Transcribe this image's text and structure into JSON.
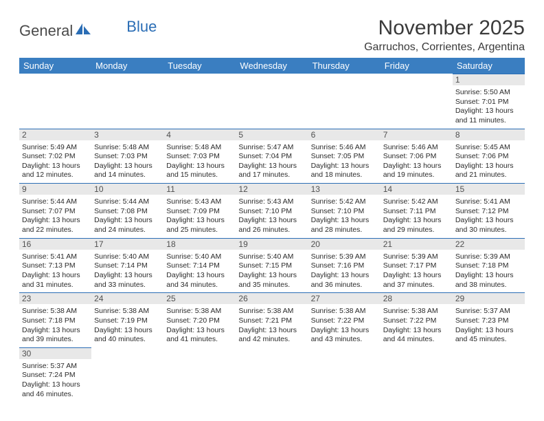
{
  "logo": {
    "text1": "General",
    "text2": "Blue"
  },
  "title": "November 2025",
  "location": "Garruchos, Corrientes, Argentina",
  "weekdays": [
    "Sunday",
    "Monday",
    "Tuesday",
    "Wednesday",
    "Thursday",
    "Friday",
    "Saturday"
  ],
  "colors": {
    "header_bg": "#3a7ec1",
    "header_fg": "#ffffff",
    "daynum_bg": "#e8e8e8",
    "daynum_border": "#2a6db5",
    "text": "#2a2a2a",
    "logo_gray": "#4a4a4a",
    "logo_blue": "#2a6db5"
  },
  "weeks": [
    [
      null,
      null,
      null,
      null,
      null,
      null,
      {
        "n": "1",
        "sr": "Sunrise: 5:50 AM",
        "ss": "Sunset: 7:01 PM",
        "d1": "Daylight: 13 hours",
        "d2": "and 11 minutes."
      }
    ],
    [
      {
        "n": "2",
        "sr": "Sunrise: 5:49 AM",
        "ss": "Sunset: 7:02 PM",
        "d1": "Daylight: 13 hours",
        "d2": "and 12 minutes."
      },
      {
        "n": "3",
        "sr": "Sunrise: 5:48 AM",
        "ss": "Sunset: 7:03 PM",
        "d1": "Daylight: 13 hours",
        "d2": "and 14 minutes."
      },
      {
        "n": "4",
        "sr": "Sunrise: 5:48 AM",
        "ss": "Sunset: 7:03 PM",
        "d1": "Daylight: 13 hours",
        "d2": "and 15 minutes."
      },
      {
        "n": "5",
        "sr": "Sunrise: 5:47 AM",
        "ss": "Sunset: 7:04 PM",
        "d1": "Daylight: 13 hours",
        "d2": "and 17 minutes."
      },
      {
        "n": "6",
        "sr": "Sunrise: 5:46 AM",
        "ss": "Sunset: 7:05 PM",
        "d1": "Daylight: 13 hours",
        "d2": "and 18 minutes."
      },
      {
        "n": "7",
        "sr": "Sunrise: 5:46 AM",
        "ss": "Sunset: 7:06 PM",
        "d1": "Daylight: 13 hours",
        "d2": "and 19 minutes."
      },
      {
        "n": "8",
        "sr": "Sunrise: 5:45 AM",
        "ss": "Sunset: 7:06 PM",
        "d1": "Daylight: 13 hours",
        "d2": "and 21 minutes."
      }
    ],
    [
      {
        "n": "9",
        "sr": "Sunrise: 5:44 AM",
        "ss": "Sunset: 7:07 PM",
        "d1": "Daylight: 13 hours",
        "d2": "and 22 minutes."
      },
      {
        "n": "10",
        "sr": "Sunrise: 5:44 AM",
        "ss": "Sunset: 7:08 PM",
        "d1": "Daylight: 13 hours",
        "d2": "and 24 minutes."
      },
      {
        "n": "11",
        "sr": "Sunrise: 5:43 AM",
        "ss": "Sunset: 7:09 PM",
        "d1": "Daylight: 13 hours",
        "d2": "and 25 minutes."
      },
      {
        "n": "12",
        "sr": "Sunrise: 5:43 AM",
        "ss": "Sunset: 7:10 PM",
        "d1": "Daylight: 13 hours",
        "d2": "and 26 minutes."
      },
      {
        "n": "13",
        "sr": "Sunrise: 5:42 AM",
        "ss": "Sunset: 7:10 PM",
        "d1": "Daylight: 13 hours",
        "d2": "and 28 minutes."
      },
      {
        "n": "14",
        "sr": "Sunrise: 5:42 AM",
        "ss": "Sunset: 7:11 PM",
        "d1": "Daylight: 13 hours",
        "d2": "and 29 minutes."
      },
      {
        "n": "15",
        "sr": "Sunrise: 5:41 AM",
        "ss": "Sunset: 7:12 PM",
        "d1": "Daylight: 13 hours",
        "d2": "and 30 minutes."
      }
    ],
    [
      {
        "n": "16",
        "sr": "Sunrise: 5:41 AM",
        "ss": "Sunset: 7:13 PM",
        "d1": "Daylight: 13 hours",
        "d2": "and 31 minutes."
      },
      {
        "n": "17",
        "sr": "Sunrise: 5:40 AM",
        "ss": "Sunset: 7:14 PM",
        "d1": "Daylight: 13 hours",
        "d2": "and 33 minutes."
      },
      {
        "n": "18",
        "sr": "Sunrise: 5:40 AM",
        "ss": "Sunset: 7:14 PM",
        "d1": "Daylight: 13 hours",
        "d2": "and 34 minutes."
      },
      {
        "n": "19",
        "sr": "Sunrise: 5:40 AM",
        "ss": "Sunset: 7:15 PM",
        "d1": "Daylight: 13 hours",
        "d2": "and 35 minutes."
      },
      {
        "n": "20",
        "sr": "Sunrise: 5:39 AM",
        "ss": "Sunset: 7:16 PM",
        "d1": "Daylight: 13 hours",
        "d2": "and 36 minutes."
      },
      {
        "n": "21",
        "sr": "Sunrise: 5:39 AM",
        "ss": "Sunset: 7:17 PM",
        "d1": "Daylight: 13 hours",
        "d2": "and 37 minutes."
      },
      {
        "n": "22",
        "sr": "Sunrise: 5:39 AM",
        "ss": "Sunset: 7:18 PM",
        "d1": "Daylight: 13 hours",
        "d2": "and 38 minutes."
      }
    ],
    [
      {
        "n": "23",
        "sr": "Sunrise: 5:38 AM",
        "ss": "Sunset: 7:18 PM",
        "d1": "Daylight: 13 hours",
        "d2": "and 39 minutes."
      },
      {
        "n": "24",
        "sr": "Sunrise: 5:38 AM",
        "ss": "Sunset: 7:19 PM",
        "d1": "Daylight: 13 hours",
        "d2": "and 40 minutes."
      },
      {
        "n": "25",
        "sr": "Sunrise: 5:38 AM",
        "ss": "Sunset: 7:20 PM",
        "d1": "Daylight: 13 hours",
        "d2": "and 41 minutes."
      },
      {
        "n": "26",
        "sr": "Sunrise: 5:38 AM",
        "ss": "Sunset: 7:21 PM",
        "d1": "Daylight: 13 hours",
        "d2": "and 42 minutes."
      },
      {
        "n": "27",
        "sr": "Sunrise: 5:38 AM",
        "ss": "Sunset: 7:22 PM",
        "d1": "Daylight: 13 hours",
        "d2": "and 43 minutes."
      },
      {
        "n": "28",
        "sr": "Sunrise: 5:38 AM",
        "ss": "Sunset: 7:22 PM",
        "d1": "Daylight: 13 hours",
        "d2": "and 44 minutes."
      },
      {
        "n": "29",
        "sr": "Sunrise: 5:37 AM",
        "ss": "Sunset: 7:23 PM",
        "d1": "Daylight: 13 hours",
        "d2": "and 45 minutes."
      }
    ],
    [
      {
        "n": "30",
        "sr": "Sunrise: 5:37 AM",
        "ss": "Sunset: 7:24 PM",
        "d1": "Daylight: 13 hours",
        "d2": "and 46 minutes."
      },
      null,
      null,
      null,
      null,
      null,
      null
    ]
  ]
}
